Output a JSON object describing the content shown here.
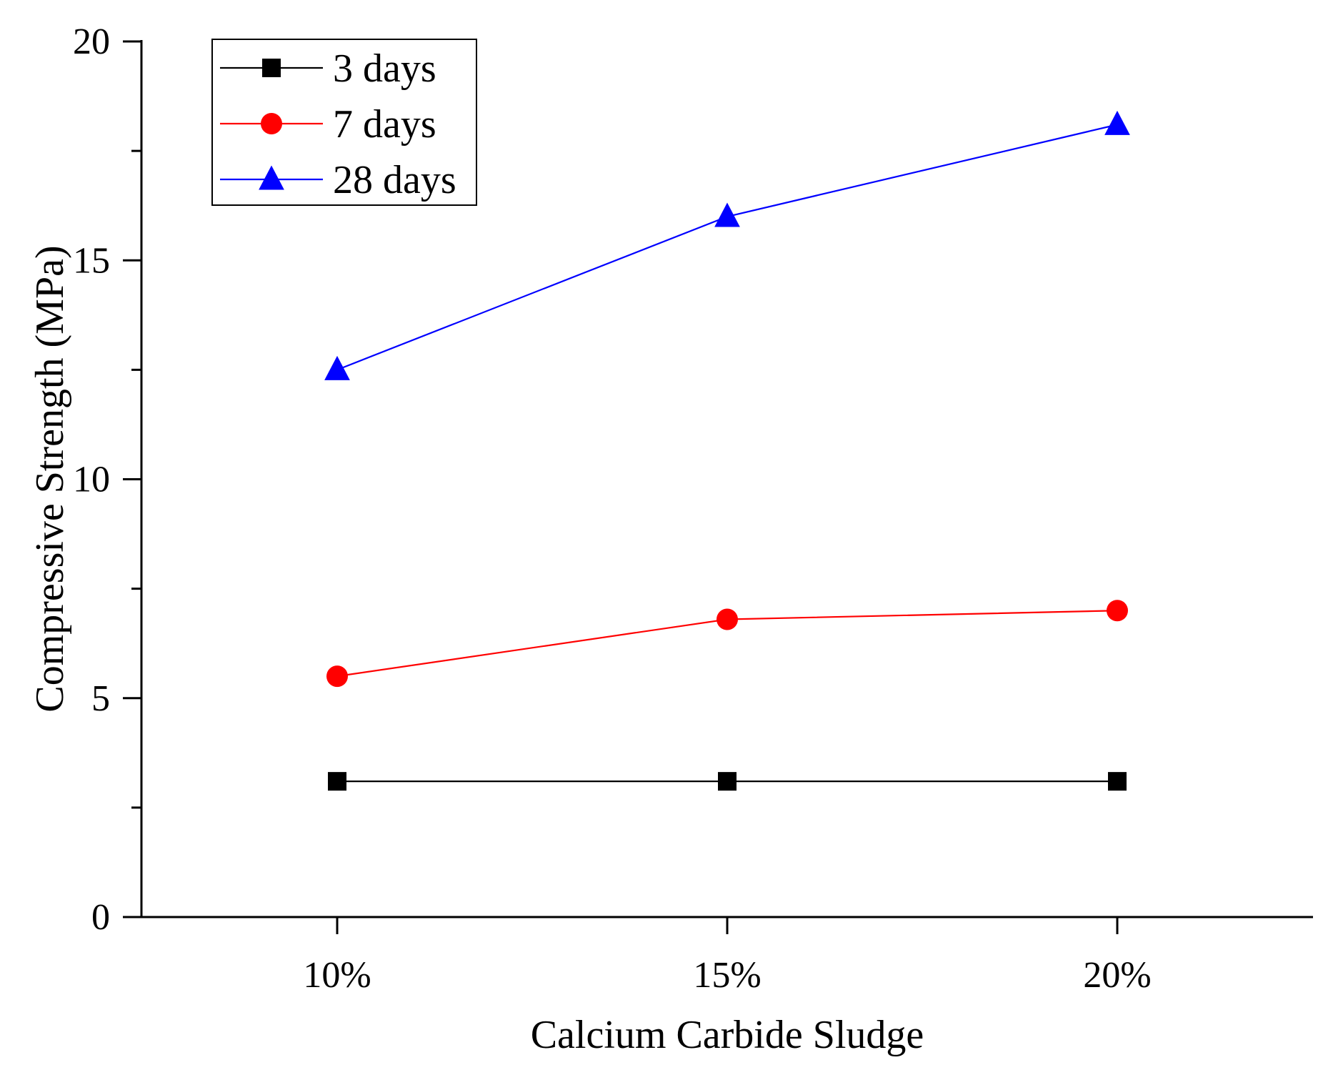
{
  "chart_data": {
    "type": "line",
    "title": "",
    "xlabel": "Calcium Carbide Sludge",
    "ylabel": "Compressive Strength (MPa)",
    "categories": [
      "10%",
      "15%",
      "20%"
    ],
    "ylim": [
      0,
      20
    ],
    "yticks": [
      0,
      5,
      10,
      15,
      20
    ],
    "yminor_ticks": [
      2.5,
      7.5,
      12.5,
      17.5
    ],
    "grid": false,
    "legend_position": "top-left",
    "series": [
      {
        "name": "3 days",
        "values": [
          3.1,
          3.1,
          3.1
        ],
        "color": "#000000",
        "marker": "square"
      },
      {
        "name": "7 days",
        "values": [
          5.5,
          6.8,
          7.0
        ],
        "color": "#ff0000",
        "marker": "circle"
      },
      {
        "name": "28 days",
        "values": [
          12.5,
          16.0,
          18.1
        ],
        "color": "#0000ff",
        "marker": "triangle"
      }
    ]
  }
}
